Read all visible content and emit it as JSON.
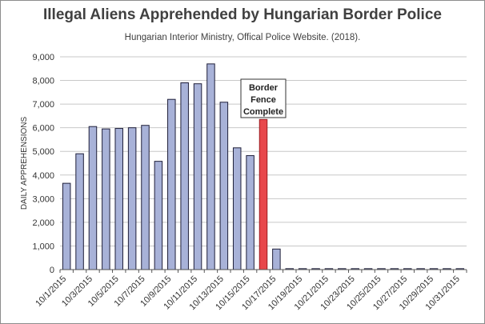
{
  "chart_data": {
    "type": "bar",
    "title": "Illegal Aliens Apprehended by Hungarian Border Police",
    "subtitle": "Hungarian Interior Ministry, Offical Police Website. (2018).",
    "ylabel": "DAILY APPREHENSIONS",
    "xlabel": "",
    "ylim": [
      0,
      9000
    ],
    "yticks": [
      0,
      1000,
      2000,
      3000,
      4000,
      5000,
      6000,
      7000,
      8000,
      9000
    ],
    "ytick_labels": [
      "0",
      "1,000",
      "2,000",
      "3,000",
      "4,000",
      "5,000",
      "6,000",
      "7,000",
      "8,000",
      "9,000"
    ],
    "grid": true,
    "categories": [
      "10/1/2015",
      "10/2/2015",
      "10/3/2015",
      "10/4/2015",
      "10/5/2015",
      "10/6/2015",
      "10/7/2015",
      "10/8/2015",
      "10/9/2015",
      "10/10/2015",
      "10/11/2015",
      "10/12/2015",
      "10/13/2015",
      "10/14/2015",
      "10/15/2015",
      "10/16/2015",
      "10/17/2015",
      "10/18/2015",
      "10/19/2015",
      "10/20/2015",
      "10/21/2015",
      "10/22/2015",
      "10/23/2015",
      "10/24/2015",
      "10/25/2015",
      "10/26/2015",
      "10/27/2015",
      "10/28/2015",
      "10/29/2015",
      "10/30/2015",
      "10/31/2015"
    ],
    "values": [
      3650,
      4900,
      6050,
      5950,
      5970,
      6000,
      6100,
      4580,
      7200,
      7900,
      7860,
      8700,
      7080,
      5150,
      4820,
      6350,
      870,
      40,
      40,
      40,
      40,
      40,
      40,
      40,
      40,
      40,
      40,
      40,
      40,
      40,
      40
    ],
    "xtick_labels": [
      "10/1/2015",
      "10/3/2015",
      "10/5/2015",
      "10/7/2015",
      "10/9/2015",
      "10/11/2015",
      "10/13/2015",
      "10/15/2015",
      "10/17/2015",
      "10/19/2015",
      "10/21/2015",
      "10/23/2015",
      "10/25/2015",
      "10/27/2015",
      "10/29/2015",
      "10/31/2015"
    ],
    "highlight_index": 15,
    "annotation": [
      "Border",
      "Fence",
      "Complete"
    ],
    "colors": {
      "bar": "#a8b2d8",
      "bar_stroke": "#1f1f3a",
      "highlight": "#e8474b",
      "highlight_stroke": "#9b1c20",
      "grid": "#c8c8c8"
    }
  }
}
